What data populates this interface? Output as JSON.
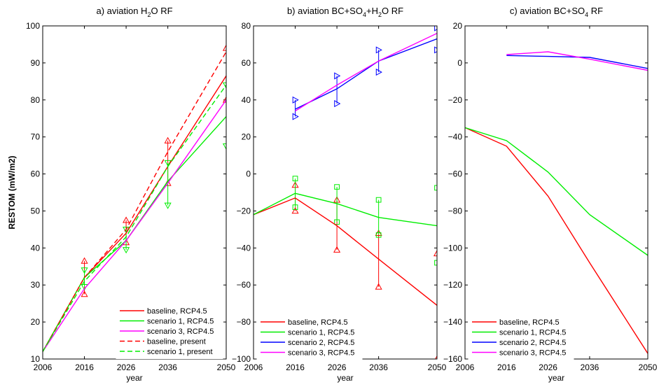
{
  "chart_data": [
    {
      "type": "line",
      "title_parts": [
        {
          "t": "a) aviation H"
        },
        {
          "t": "2",
          "sub": true
        },
        {
          "t": "O RF"
        }
      ],
      "xlabel": "year",
      "ylabel": "RESTOM (mW/m2)",
      "xlim": [
        2006,
        2050
      ],
      "ylim": [
        10,
        100
      ],
      "xticks": [
        2006,
        2016,
        2026,
        2036,
        2050
      ],
      "yticks": [
        10,
        20,
        30,
        40,
        50,
        60,
        70,
        80,
        90,
        100
      ],
      "legend_position": "bottom-right",
      "series": [
        {
          "name": "baseline, RCP4.5",
          "color": "#ff0000",
          "dash": false,
          "x": [
            2006,
            2016,
            2026,
            2036,
            2050
          ],
          "y": [
            12,
            32,
            44,
            62,
            86.5
          ]
        },
        {
          "name": "scenario 1, RCP4.5",
          "color": "#00ee00",
          "dash": false,
          "x": [
            2006,
            2016,
            2026,
            2036,
            2050
          ],
          "y": [
            12,
            32,
            42,
            58,
            75.5
          ]
        },
        {
          "name": "scenario 3, RCP4.5",
          "color": "#ff00ff",
          "dash": false,
          "x": [
            2006,
            2016,
            2026,
            2036,
            2050
          ],
          "y": [
            12,
            29,
            42,
            57.5,
            80
          ]
        },
        {
          "name": "baseline, present",
          "color": "#ff0000",
          "dash": true,
          "x": [
            2006,
            2016,
            2026,
            2036,
            2050
          ],
          "y": [
            12,
            32,
            45,
            66,
            93
          ]
        },
        {
          "name": "scenario 1, present",
          "color": "#00ee00",
          "dash": true,
          "x": [
            2006,
            2016,
            2026,
            2036,
            2050
          ],
          "y": [
            12,
            31,
            43,
            62,
            84
          ]
        }
      ],
      "errorbars": [
        {
          "color": "#ff0000",
          "marker": "triangle-up",
          "x": [
            2016,
            2026,
            2036,
            2050
          ],
          "low": [
            27.5,
            41.5,
            57.5,
            80
          ],
          "high": [
            36.5,
            47.5,
            69,
            94
          ]
        },
        {
          "color": "#00ee00",
          "marker": "triangle-down",
          "x": [
            2016,
            2026,
            2036,
            2050
          ],
          "low": [
            29.5,
            39.5,
            51.5,
            67.5
          ],
          "high": [
            34,
            45,
            63,
            84
          ]
        }
      ]
    },
    {
      "type": "line",
      "title_parts": [
        {
          "t": "b) aviation BC+SO"
        },
        {
          "t": "4",
          "sub": true
        },
        {
          "t": "+H"
        },
        {
          "t": "2",
          "sub": true
        },
        {
          "t": "O RF"
        }
      ],
      "xlabel": "year",
      "ylabel": "",
      "xlim": [
        2006,
        2050
      ],
      "ylim": [
        -100,
        80
      ],
      "xticks": [
        2006,
        2016,
        2026,
        2036,
        2050
      ],
      "yticks": [
        -100,
        -80,
        -60,
        -40,
        -20,
        0,
        20,
        40,
        60,
        80
      ],
      "legend_position": "bottom-left",
      "series": [
        {
          "name": "baseline, RCP4.5",
          "color": "#ff0000",
          "dash": false,
          "x": [
            2006,
            2016,
            2026,
            2036,
            2050
          ],
          "y": [
            -22,
            -13,
            -28,
            -46,
            -71
          ]
        },
        {
          "name": "scenario 1, RCP4.5",
          "color": "#00ee00",
          "dash": false,
          "x": [
            2006,
            2016,
            2026,
            2036,
            2050
          ],
          "y": [
            -22,
            -10.5,
            -16,
            -23.5,
            -28
          ]
        },
        {
          "name": "scenario 2, RCP4.5",
          "color": "#0000ff",
          "dash": false,
          "x": [
            2016,
            2026,
            2036,
            2050
          ],
          "y": [
            35,
            46,
            61,
            73
          ]
        },
        {
          "name": "scenario 3, RCP4.5",
          "color": "#ff00ff",
          "dash": false,
          "x": [
            2016,
            2026,
            2036,
            2050
          ],
          "y": [
            34,
            48,
            61,
            76
          ]
        }
      ],
      "errorbars": [
        {
          "color": "#ff0000",
          "marker": "triangle-up",
          "x": [
            2016,
            2026,
            2036,
            2050
          ],
          "low": [
            -20,
            -41,
            -61,
            -100
          ],
          "high": [
            -6,
            -14,
            -32,
            -43
          ]
        },
        {
          "color": "#00ee00",
          "marker": "square",
          "x": [
            2016,
            2026,
            2036,
            2050
          ],
          "low": [
            -18,
            -26,
            -33,
            -48
          ],
          "high": [
            -2.5,
            -7,
            -14,
            -7.5
          ]
        },
        {
          "color": "#0000ff",
          "marker": "triangle-right",
          "x": [
            2016,
            2026,
            2036,
            2050
          ],
          "low": [
            31,
            38,
            55,
            67
          ],
          "high": [
            40,
            53,
            67,
            79
          ]
        }
      ]
    },
    {
      "type": "line",
      "title_parts": [
        {
          "t": "c) aviation BC+SO"
        },
        {
          "t": "4",
          "sub": true
        },
        {
          "t": " RF"
        }
      ],
      "xlabel": "year",
      "ylabel": "",
      "xlim": [
        2006,
        2050
      ],
      "ylim": [
        -160,
        20
      ],
      "xticks": [
        2006,
        2016,
        2026,
        2036,
        2050
      ],
      "yticks": [
        -160,
        -140,
        -120,
        -100,
        -80,
        -60,
        -40,
        -20,
        0,
        20
      ],
      "legend_position": "bottom-left",
      "series": [
        {
          "name": "baseline, RCP4.5",
          "color": "#ff0000",
          "dash": false,
          "x": [
            2006,
            2016,
            2026,
            2036,
            2050
          ],
          "y": [
            -35,
            -45,
            -72,
            -108,
            -157
          ]
        },
        {
          "name": "scenario 1, RCP4.5",
          "color": "#00ee00",
          "dash": false,
          "x": [
            2006,
            2016,
            2026,
            2036,
            2050
          ],
          "y": [
            -35,
            -42,
            -59,
            -82,
            -104
          ]
        },
        {
          "name": "scenario 2, RCP4.5",
          "color": "#0000ff",
          "dash": false,
          "x": [
            2016,
            2026,
            2036,
            2050
          ],
          "y": [
            4,
            3.5,
            3,
            -3
          ]
        },
        {
          "name": "scenario 3, RCP4.5",
          "color": "#ff00ff",
          "dash": false,
          "x": [
            2016,
            2026,
            2036,
            2050
          ],
          "y": [
            4.5,
            6,
            2,
            -4
          ]
        }
      ],
      "errorbars": []
    }
  ]
}
